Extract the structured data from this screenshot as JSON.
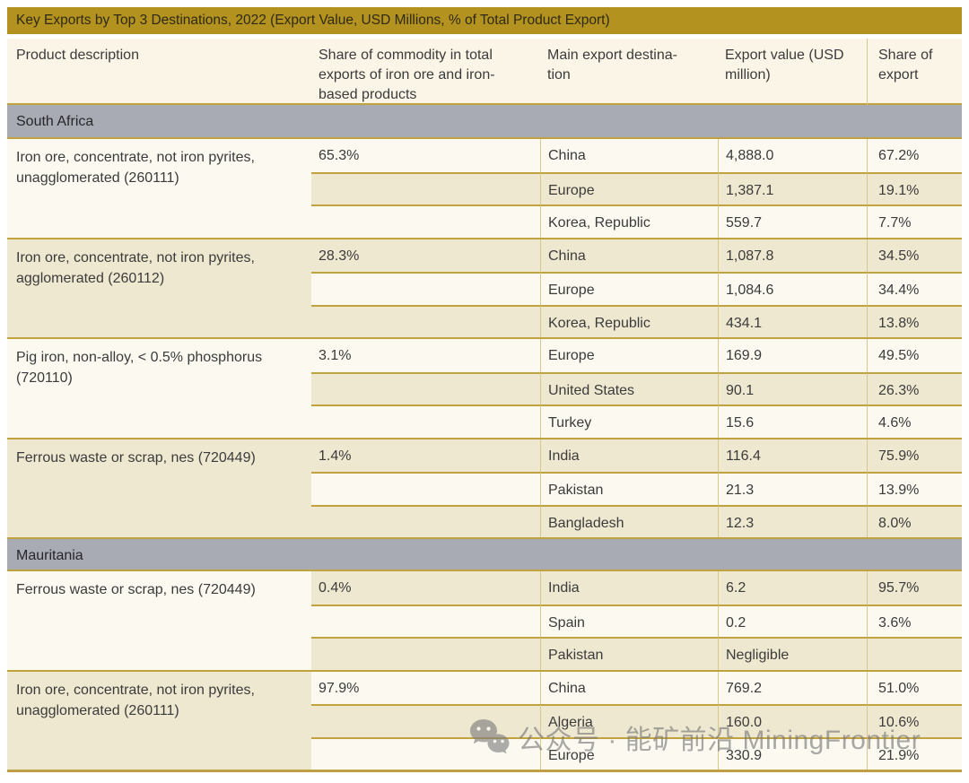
{
  "table": {
    "title": "Key Exports by Top 3 Destinations, 2022 (Export Value, USD Millions, % of Total Product Export)",
    "columns": [
      {
        "label": "Product description"
      },
      {
        "label": "Share of commodity in total\nexports of iron ore and iron-\nbased products"
      },
      {
        "label": "Main export destina-\ntion"
      },
      {
        "label": "Export value (USD\nmillion)"
      },
      {
        "label": "Share of\nexport"
      }
    ],
    "sections": [
      {
        "name": "South Africa",
        "groups": [
          {
            "product": "Iron ore, concentrate, not iron pyrites,\nunagglomerated (260111)",
            "share_of_commodity": "65.3%",
            "destinations": [
              {
                "destination": "China",
                "export_value": "4,888.0",
                "share_of_export": "67.2%"
              },
              {
                "destination": "Europe",
                "export_value": "1,387.1",
                "share_of_export": "19.1%"
              },
              {
                "destination": "Korea, Republic",
                "export_value": "559.7",
                "share_of_export": "7.7%"
              }
            ]
          },
          {
            "product": "Iron ore, concentrate, not iron pyrites,\nagglomerated (260112)",
            "share_of_commodity": "28.3%",
            "destinations": [
              {
                "destination": "China",
                "export_value": "1,087.8",
                "share_of_export": "34.5%"
              },
              {
                "destination": "Europe",
                "export_value": "1,084.6",
                "share_of_export": "34.4%"
              },
              {
                "destination": "Korea, Republic",
                "export_value": "434.1",
                "share_of_export": "13.8%"
              }
            ]
          },
          {
            "product": "Pig iron, non-alloy, < 0.5% phosphorus\n(720110)",
            "share_of_commodity": "3.1%",
            "destinations": [
              {
                "destination": "Europe",
                "export_value": "169.9",
                "share_of_export": "49.5%"
              },
              {
                "destination": "United States",
                "export_value": "90.1",
                "share_of_export": "26.3%"
              },
              {
                "destination": "Turkey",
                "export_value": "15.6",
                "share_of_export": "4.6%"
              }
            ]
          },
          {
            "product": "Ferrous waste or scrap, nes (720449)",
            "share_of_commodity": "1.4%",
            "destinations": [
              {
                "destination": "India",
                "export_value": "116.4",
                "share_of_export": "75.9%"
              },
              {
                "destination": "Pakistan",
                "export_value": "21.3",
                "share_of_export": "13.9%"
              },
              {
                "destination": "Bangladesh",
                "export_value": "12.3",
                "share_of_export": "8.0%"
              }
            ]
          }
        ]
      },
      {
        "name": "Mauritania",
        "groups": [
          {
            "product": "Ferrous waste or scrap, nes (720449)",
            "share_of_commodity": "0.4%",
            "destinations": [
              {
                "destination": "India",
                "export_value": "6.2",
                "share_of_export": "95.7%"
              },
              {
                "destination": "Spain",
                "export_value": "0.2",
                "share_of_export": "3.6%"
              },
              {
                "destination": "Pakistan",
                "export_value": "Negligible",
                "share_of_export": ""
              }
            ]
          },
          {
            "product": "Iron ore, concentrate, not iron pyrites,\nunagglomerated (260111)",
            "share_of_commodity": "97.9%",
            "destinations": [
              {
                "destination": "China",
                "export_value": "769.2",
                "share_of_export": "51.0%"
              },
              {
                "destination": "Algeria",
                "export_value": "160.0",
                "share_of_export": "10.6%"
              },
              {
                "destination": "Europe",
                "export_value": "330.9",
                "share_of_export": "21.9%"
              }
            ]
          }
        ]
      }
    ]
  },
  "watermark": {
    "icon": "wechat-icon",
    "text": "公众号 · 能矿前沿 MiningFrontier"
  },
  "colors": {
    "title_bar_gold": "#b3921f",
    "section_bar_gray": "#a9abb4",
    "row_cream": "#fbf9f0",
    "row_beige": "#efe8d0",
    "header_cream": "#faf5e7",
    "line_gold": "#c0a23f",
    "watermark_gray": "#9b9b9b"
  }
}
